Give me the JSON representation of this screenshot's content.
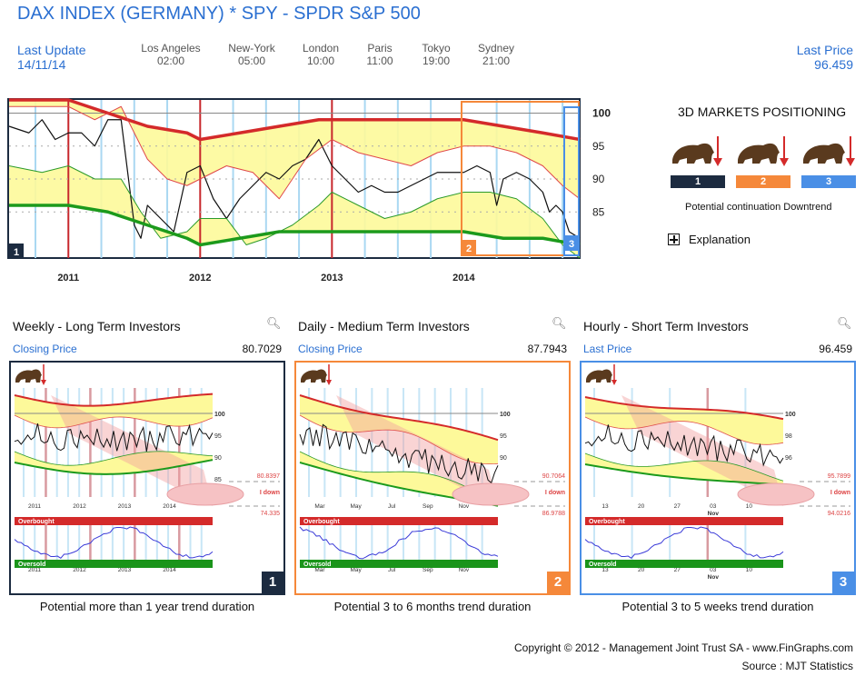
{
  "header": {
    "title": "DAX INDEX (GERMANY) * SPY - SPDR S&P 500",
    "last_update_label": "Last Update",
    "last_update_value": "14/11/14",
    "last_price_label": "Last Price",
    "last_price_value": "96.459",
    "cities": [
      {
        "name": "Los Angeles",
        "time": "02:00"
      },
      {
        "name": "New-York",
        "time": "05:00"
      },
      {
        "name": "London",
        "time": "10:00"
      },
      {
        "name": "Paris",
        "time": "11:00"
      },
      {
        "name": "Tokyo",
        "time": "19:00"
      },
      {
        "name": "Sydney",
        "time": "21:00"
      }
    ]
  },
  "positioning": {
    "title": "3D MARKETS POSITIONING",
    "badges": [
      {
        "label": "1",
        "color": "#1c2b40"
      },
      {
        "label": "2",
        "color": "#f5883a"
      },
      {
        "label": "3",
        "color": "#4a8fe6"
      }
    ],
    "description": "Potential continuation Downtrend",
    "explanation_label": "Explanation",
    "icons": [
      "bear-icon",
      "down-arrow-icon"
    ]
  },
  "colors": {
    "brand_blue": "#2a6fd1",
    "upper_band": "#d42a2a",
    "lower_band": "#1c9a1c",
    "band_fill": "#fdf99a",
    "weekly": "#1c2b40",
    "daily": "#f5883a",
    "hourly": "#4a8fe6"
  },
  "chart_data": [
    {
      "id": "main",
      "type": "line",
      "title": "DAX INDEX (GERMANY) * SPY - SPDR S&P 500",
      "x_ticks": [
        "2011",
        "2012",
        "2013",
        "2014"
      ],
      "y_ticks": [
        "100",
        "95",
        "90",
        "85"
      ],
      "ylim": [
        78,
        102
      ],
      "xlim": [
        2010.55,
        2014.88
      ],
      "grid": "dotted-horizontal",
      "period_markers": [
        "1",
        "2",
        "3"
      ],
      "series": [
        {
          "name": "price",
          "x": [
            2010.55,
            2010.7,
            2010.8,
            2010.9,
            2011.0,
            2011.1,
            2011.2,
            2011.3,
            2011.4,
            2011.5,
            2011.55,
            2011.6,
            2011.65,
            2011.7,
            2011.8,
            2011.9,
            2012.0,
            2012.1,
            2012.2,
            2012.3,
            2012.4,
            2012.5,
            2012.6,
            2012.7,
            2012.8,
            2012.9,
            2013.0,
            2013.1,
            2013.2,
            2013.3,
            2013.4,
            2013.5,
            2013.6,
            2013.7,
            2013.8,
            2013.9,
            2014.0,
            2014.1,
            2014.2,
            2014.25,
            2014.3,
            2014.4,
            2014.5,
            2014.6,
            2014.65,
            2014.7,
            2014.75,
            2014.8,
            2014.88
          ],
          "y": [
            98,
            97,
            99,
            96,
            97,
            97,
            95,
            99,
            99,
            83,
            81,
            86,
            85,
            84,
            82,
            91,
            92,
            87,
            84,
            87,
            89,
            91,
            90,
            92,
            93,
            96,
            92,
            90,
            88,
            89,
            88,
            88,
            89,
            90,
            91,
            91,
            91,
            92,
            91,
            86,
            90,
            91,
            90,
            88,
            85,
            86,
            85,
            82,
            81
          ]
        },
        {
          "name": "upper band",
          "x": [
            2010.55,
            2011.0,
            2011.3,
            2011.6,
            2011.9,
            2012.0,
            2012.3,
            2012.6,
            2012.9,
            2013.0,
            2013.3,
            2013.6,
            2014.0,
            2014.3,
            2014.6,
            2014.88
          ],
          "y": [
            102,
            102,
            100,
            98,
            97,
            96,
            97,
            98,
            99,
            99,
            99,
            99,
            99,
            98,
            97,
            96
          ]
        },
        {
          "name": "upper inner",
          "x": [
            2010.55,
            2010.8,
            2011.0,
            2011.2,
            2011.4,
            2011.6,
            2011.75,
            2011.9,
            2012.0,
            2012.2,
            2012.4,
            2012.6,
            2012.8,
            2013.0,
            2013.2,
            2013.4,
            2013.6,
            2013.8,
            2014.0,
            2014.2,
            2014.4,
            2014.6,
            2014.75,
            2014.88
          ],
          "y": [
            101,
            101,
            101,
            99,
            101,
            93,
            90,
            89,
            90,
            92,
            91,
            87,
            93,
            96,
            94,
            93,
            92,
            94,
            95,
            95,
            94,
            92,
            89,
            87
          ]
        },
        {
          "name": "lower inner",
          "x": [
            2010.55,
            2010.8,
            2011.0,
            2011.2,
            2011.4,
            2011.55,
            2011.7,
            2011.9,
            2012.0,
            2012.2,
            2012.35,
            2012.5,
            2012.7,
            2012.9,
            2013.0,
            2013.2,
            2013.4,
            2013.6,
            2013.8,
            2014.0,
            2014.2,
            2014.4,
            2014.6,
            2014.75,
            2014.88
          ],
          "y": [
            92,
            91,
            92,
            90,
            90,
            85,
            81,
            82,
            84,
            84,
            80,
            81,
            83,
            86,
            88,
            86,
            84,
            85,
            87,
            88,
            88,
            87,
            84,
            80,
            78
          ]
        },
        {
          "name": "lower band",
          "x": [
            2010.55,
            2011.0,
            2011.3,
            2011.6,
            2011.9,
            2012.0,
            2012.3,
            2012.6,
            2012.9,
            2013.0,
            2013.3,
            2013.6,
            2014.0,
            2014.3,
            2014.6,
            2014.88
          ],
          "y": [
            86,
            86,
            85,
            83,
            81,
            80,
            81,
            82,
            82,
            82,
            82,
            82,
            82,
            81,
            81,
            80
          ]
        }
      ]
    },
    {
      "id": "weekly",
      "type": "line",
      "title": "Weekly - Long Term Investors",
      "price_label": "Closing Price",
      "price_value": "80.7029",
      "x_ticks": [
        "2011",
        "2012",
        "2013",
        "2014"
      ],
      "y_ticks": [
        "100",
        "95",
        "90",
        "85"
      ],
      "target_high": "80.8397",
      "target_low": "74.335",
      "target_label": "I down",
      "oscillator_labels": [
        "Overbought",
        "Oversold"
      ],
      "duration": "Potential more than 1 year trend duration",
      "badge": "1"
    },
    {
      "id": "daily",
      "type": "line",
      "title": "Daily - Medium Term Investors",
      "price_label": "Closing Price",
      "price_value": "87.7943",
      "x_ticks": [
        "Mar",
        "May",
        "Jul",
        "Sep",
        "Nov"
      ],
      "y_ticks": [
        "100",
        "95",
        "90"
      ],
      "target_high": "90.7064",
      "target_low": "86.9788",
      "target_label": "I down",
      "oscillator_labels": [
        "Overbought",
        "Oversold"
      ],
      "duration": "Potential 3 to 6 months trend duration",
      "badge": "2"
    },
    {
      "id": "hourly",
      "type": "line",
      "title": "Hourly - Short Term Investors",
      "price_label": "Last Price",
      "price_value": "96.459",
      "x_ticks": [
        "13",
        "20",
        "27",
        "03",
        "10"
      ],
      "x_sublabel": "Nov",
      "y_ticks": [
        "100",
        "98",
        "96"
      ],
      "target_high": "95.7899",
      "target_low": "94.0216",
      "target_label": "I down",
      "oscillator_labels": [
        "Overbought",
        "Oversold"
      ],
      "duration": "Potential 3 to 5 weeks trend duration",
      "badge": "3"
    }
  ],
  "footer": {
    "copyright": "Copyright © 2012 - Management Joint Trust SA - www.FinGraphs.com",
    "source": "Source : MJT Statistics"
  }
}
